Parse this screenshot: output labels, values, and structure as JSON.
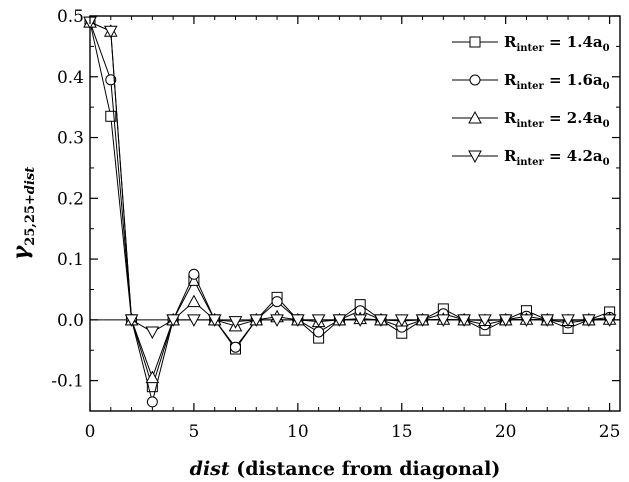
{
  "chart_data": {
    "type": "line",
    "xlabel": {
      "italic": "dist",
      "rest": " (distance from diagonal)"
    },
    "ylabel": {
      "gamma": "γ",
      "subscript": "25,25+",
      "sub_italic": "dist"
    },
    "xlim": [
      0,
      25.5
    ],
    "ylim": [
      -0.15,
      0.5
    ],
    "xticks": [
      0,
      5,
      10,
      15,
      20,
      25
    ],
    "yticks": [
      0.5,
      0.4,
      0.3,
      0.2,
      0.1,
      0.0,
      -0.1
    ],
    "ytick_labels": [
      "0.5",
      "0.4",
      "0.3",
      "0.2",
      "0.1",
      "0.0",
      "-0.1"
    ],
    "xtick_labels": [
      "0",
      "5",
      "10",
      "15",
      "20",
      "25"
    ],
    "zero_line": true,
    "legend_position": "top-right",
    "x": [
      0,
      1,
      2,
      3,
      4,
      5,
      6,
      7,
      8,
      9,
      10,
      11,
      12,
      13,
      14,
      15,
      16,
      17,
      18,
      19,
      20,
      21,
      22,
      23,
      24,
      25
    ],
    "series": [
      {
        "legend_main": "R",
        "legend_sub": "inter",
        "legend_eq": " = 1.4a",
        "legend_sub2": "0",
        "marker": "square",
        "values": [
          0.49,
          0.335,
          0.0,
          -0.11,
          0.0,
          0.065,
          0.0,
          -0.048,
          0.0,
          0.037,
          0.0,
          -0.03,
          0.0,
          0.025,
          0.0,
          -0.022,
          0.0,
          0.018,
          0.0,
          -0.017,
          0.0,
          0.015,
          0.0,
          -0.014,
          0.0,
          0.013
        ]
      },
      {
        "legend_main": "R",
        "legend_sub": "inter",
        "legend_eq": " = 1.6a",
        "legend_sub2": "0",
        "marker": "circle",
        "values": [
          0.49,
          0.395,
          0.0,
          -0.135,
          0.0,
          0.075,
          0.0,
          -0.045,
          0.0,
          0.03,
          0.0,
          -0.02,
          0.0,
          0.015,
          0.0,
          -0.012,
          0.0,
          0.01,
          0.0,
          -0.008,
          0.0,
          0.006,
          0.0,
          -0.005,
          0.0,
          0.004
        ]
      },
      {
        "legend_main": "R",
        "legend_sub": "inter",
        "legend_eq": " = 2.4a",
        "legend_sub2": "0",
        "marker": "triangle-up",
        "values": [
          0.49,
          0.475,
          0.0,
          -0.095,
          0.0,
          0.03,
          0.0,
          -0.01,
          0.0,
          0.005,
          0.0,
          -0.003,
          0.0,
          0.002,
          0.0,
          -0.002,
          0.0,
          0.001,
          0.0,
          -0.001,
          0.0,
          0.001,
          0.0,
          -0.001,
          0.0,
          0.001
        ]
      },
      {
        "legend_main": "R",
        "legend_sub": "inter",
        "legend_eq": " = 4.2a",
        "legend_sub2": "0",
        "marker": "triangle-down",
        "values": [
          0.49,
          0.475,
          0.0,
          -0.02,
          0.0,
          0.0,
          0.0,
          -0.003,
          0.0,
          0.0,
          0.0,
          0.0,
          0.0,
          0.0,
          0.0,
          0.0,
          0.0,
          0.0,
          0.0,
          0.0,
          0.0,
          0.0,
          0.0,
          0.0,
          0.0,
          0.0
        ]
      }
    ]
  }
}
